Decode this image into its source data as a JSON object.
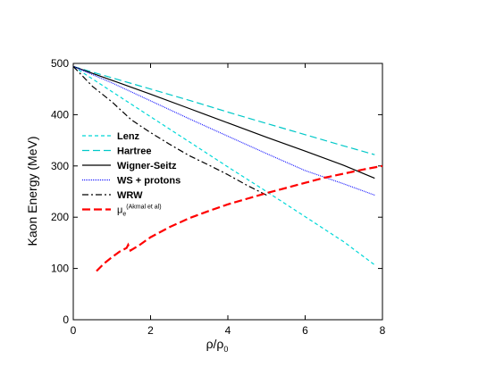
{
  "chart_data": {
    "type": "line",
    "xlabel": "ρ/ρ",
    "xlabel_sub": "0",
    "ylabel": "Kaon Energy (MeV)",
    "xlim": [
      0,
      8
    ],
    "ylim": [
      0,
      500
    ],
    "xticks": [
      0,
      2,
      4,
      6,
      8
    ],
    "yticks": [
      0,
      100,
      200,
      300,
      400,
      500
    ],
    "xtick_labels": [
      "0",
      "2",
      "4",
      "6",
      "8"
    ],
    "ytick_labels": [
      "0",
      "100",
      "200",
      "300",
      "400",
      "500"
    ],
    "grid": false,
    "legend_position": "center-left",
    "series": [
      {
        "name": "Lenz",
        "color": "#00d8d8",
        "style": "short-dash",
        "x": [
          0,
          1,
          2,
          3,
          4,
          5,
          6,
          7,
          7.8
        ],
        "y": [
          494,
          445,
          396,
          347,
          298,
          250,
          201,
          152,
          107
        ]
      },
      {
        "name": "Hartree",
        "color": "#00c8c8",
        "style": "long-dash",
        "x": [
          0,
          1,
          2,
          3,
          4,
          5,
          6,
          7,
          7.8
        ],
        "y": [
          494,
          472,
          450,
          428,
          405,
          383,
          361,
          339,
          322
        ]
      },
      {
        "name": "Wigner-Seitz",
        "color": "#000000",
        "style": "solid",
        "x": [
          0,
          1,
          2,
          3,
          4,
          5,
          6,
          7,
          7.8
        ],
        "y": [
          494,
          467,
          440,
          412,
          384,
          356,
          329,
          301,
          276
        ]
      },
      {
        "name": "WS + protons",
        "color": "#1a1aff",
        "style": "dotted",
        "x": [
          0,
          1,
          2,
          3,
          4,
          5,
          6,
          7,
          7.8
        ],
        "y": [
          494,
          462,
          427,
          392,
          358,
          324,
          291,
          265,
          243
        ]
      },
      {
        "name": "WRW",
        "color": "#000000",
        "style": "dash-dot",
        "x": [
          0,
          0.5,
          1,
          1.5,
          2,
          2.5,
          3,
          3.5,
          4,
          4.5,
          5
        ],
        "y": [
          494,
          455,
          425,
          390,
          365,
          342,
          320,
          302,
          283,
          262,
          243
        ]
      },
      {
        "name": "μ",
        "name_sub": "e",
        "name_sup": "(Akmal et al)",
        "color": "#ff0000",
        "style": "thick-dash",
        "x": [
          0.6,
          0.8,
          1.0,
          1.2,
          1.38,
          1.42,
          1.48,
          1.7,
          2.0,
          2.5,
          3.0,
          3.5,
          4.0,
          4.5,
          5.0,
          5.5,
          6.0,
          6.5,
          7.0,
          7.5,
          8.0
        ],
        "y": [
          95,
          110,
          122,
          133,
          140,
          146,
          135,
          145,
          161,
          181,
          198,
          212,
          225,
          236,
          247,
          257,
          267,
          277,
          285,
          293,
          300
        ]
      }
    ]
  }
}
